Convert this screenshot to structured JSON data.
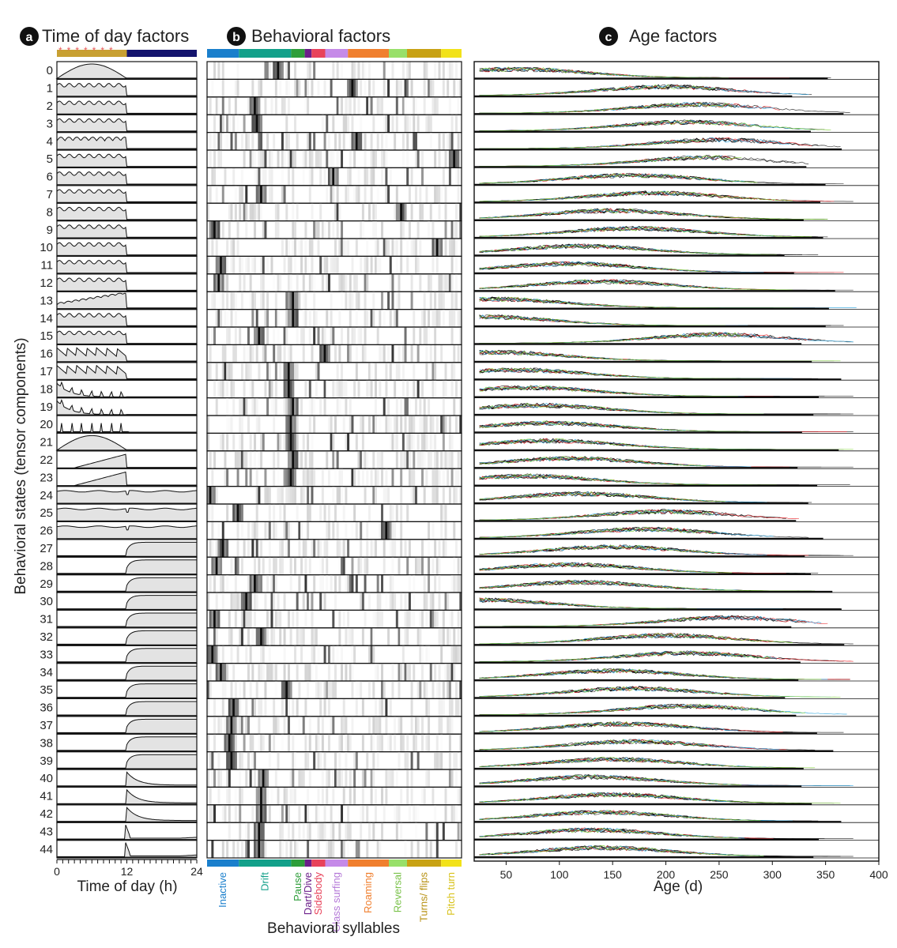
{
  "panels": {
    "a": {
      "letter": "a",
      "title": "Time of day factors"
    },
    "b": {
      "letter": "b",
      "title": "Behavioral factors"
    },
    "c": {
      "letter": "c",
      "title": "Age factors"
    }
  },
  "y_axis_label": "Behavioral states (tensor components)",
  "colors": {
    "day_bar": "#c8a032",
    "night_bar": "#14146e",
    "light_marker": "#e85a5a",
    "area_fill": "#e3e3e3"
  },
  "chart_data": [
    {
      "type": "area",
      "title": "Time of day factors",
      "xlabel": "Time of day (h)",
      "xticks": [
        0,
        12,
        24
      ],
      "xlim": [
        0,
        24
      ],
      "rows": [
        "0",
        "1",
        "2",
        "3",
        "4",
        "5",
        "6",
        "7",
        "8",
        "9",
        "10",
        "11",
        "12",
        "13",
        "14",
        "15",
        "16",
        "17",
        "18",
        "19",
        "20",
        "21",
        "22",
        "23",
        "24",
        "25",
        "26",
        "27",
        "28",
        "29",
        "30",
        "31",
        "32",
        "33",
        "34",
        "35",
        "36",
        "37",
        "38",
        "39",
        "40",
        "41",
        "42",
        "43",
        "44"
      ],
      "light_period_hours": [
        0,
        12
      ],
      "dark_period_hours": [
        12,
        24
      ],
      "light_markers": "*******",
      "row_profiles": [
        "day-peak",
        "day",
        "day",
        "day",
        "day-wavy",
        "day",
        "day",
        "day",
        "day",
        "day",
        "day",
        "day",
        "day",
        "day-rising",
        "day",
        "day",
        "day-scallop",
        "day-scallop",
        "early-spikes",
        "early-spikes",
        "spikes",
        "day-peak",
        "late-day",
        "late-day",
        "flat",
        "flat",
        "flat",
        "night",
        "night",
        "night",
        "night",
        "night",
        "night",
        "night",
        "night",
        "night",
        "night",
        "night",
        "night",
        "night",
        "night-decay",
        "night-decay",
        "night-decay",
        "onset-spike",
        "onset-spike"
      ]
    },
    {
      "type": "heatmap",
      "title": "Behavioral factors",
      "xlabel": "Behavioral syllables",
      "categories": [
        "Inactive",
        "Drift",
        "Pause",
        "Dart/Dive",
        "Sidebody",
        "Glass surfing",
        "Roaming",
        "Reversal",
        "Turns/ flips",
        "Pitch turn"
      ],
      "category_colors": [
        "#1a7fcc",
        "#13a08a",
        "#2e9e3a",
        "#6b1e8a",
        "#e8425a",
        "#c58ae8",
        "#f07f2e",
        "#98e06a",
        "#c8a214",
        "#f2e21a"
      ],
      "category_widths": [
        14,
        23,
        6,
        3,
        6,
        10,
        18,
        8,
        15,
        9
      ],
      "category_label_colors": [
        "#1a7fcc",
        "#13a08a",
        "#2e9e3a",
        "#6b1e8a",
        "#e8425a",
        "#b57ad8",
        "#f07f2e",
        "#7ac24a",
        "#b89214",
        "#d8c21a"
      ],
      "rows": [
        "0",
        "1",
        "2",
        "3",
        "4",
        "5",
        "6",
        "7",
        "8",
        "9",
        "10",
        "11",
        "12",
        "13",
        "14",
        "15",
        "16",
        "17",
        "18",
        "19",
        "20",
        "21",
        "22",
        "23",
        "24",
        "25",
        "26",
        "27",
        "28",
        "29",
        "30",
        "31",
        "32",
        "33",
        "34",
        "35",
        "36",
        "37",
        "38",
        "39",
        "40",
        "41",
        "42",
        "43",
        "44"
      ],
      "dominant_syllable_per_row": [
        33,
        68,
        22,
        23,
        70,
        116,
        59,
        25,
        91,
        3,
        108,
        6,
        5,
        40,
        40,
        24,
        55,
        38,
        38,
        40,
        39,
        39,
        40,
        39,
        1,
        14,
        84,
        7,
        4,
        22,
        18,
        3,
        25,
        2,
        6,
        37,
        12,
        11,
        10,
        11,
        26,
        25,
        25,
        24,
        24
      ],
      "n_syllables": 120
    },
    {
      "type": "line",
      "title": "Age factors",
      "xlabel": "Age (d)",
      "xticks": [
        50,
        100,
        150,
        200,
        250,
        300,
        350,
        400
      ],
      "xlim": [
        20,
        400
      ],
      "rows": [
        "0",
        "1",
        "2",
        "3",
        "4",
        "5",
        "6",
        "7",
        "8",
        "9",
        "10",
        "11",
        "12",
        "13",
        "14",
        "15",
        "16",
        "17",
        "18",
        "19",
        "20",
        "21",
        "22",
        "23",
        "24",
        "25",
        "26",
        "27",
        "28",
        "29",
        "30",
        "31",
        "32",
        "33",
        "34",
        "35",
        "36",
        "37",
        "38",
        "39",
        "40",
        "41",
        "42",
        "43",
        "44"
      ],
      "series_colors": [
        "#000000",
        "#e8252a",
        "#35a8e0",
        "#7fd23a",
        "#888888"
      ],
      "row_peak_age": [
        60,
        200,
        230,
        220,
        250,
        240,
        170,
        190,
        150,
        170,
        120,
        110,
        140,
        40,
        30,
        250,
        40,
        60,
        70,
        80,
        90,
        90,
        110,
        70,
        120,
        200,
        180,
        150,
        110,
        120,
        30,
        260,
        200,
        220,
        150,
        170,
        220,
        160,
        170,
        150,
        130,
        150,
        140,
        130,
        140
      ]
    }
  ]
}
